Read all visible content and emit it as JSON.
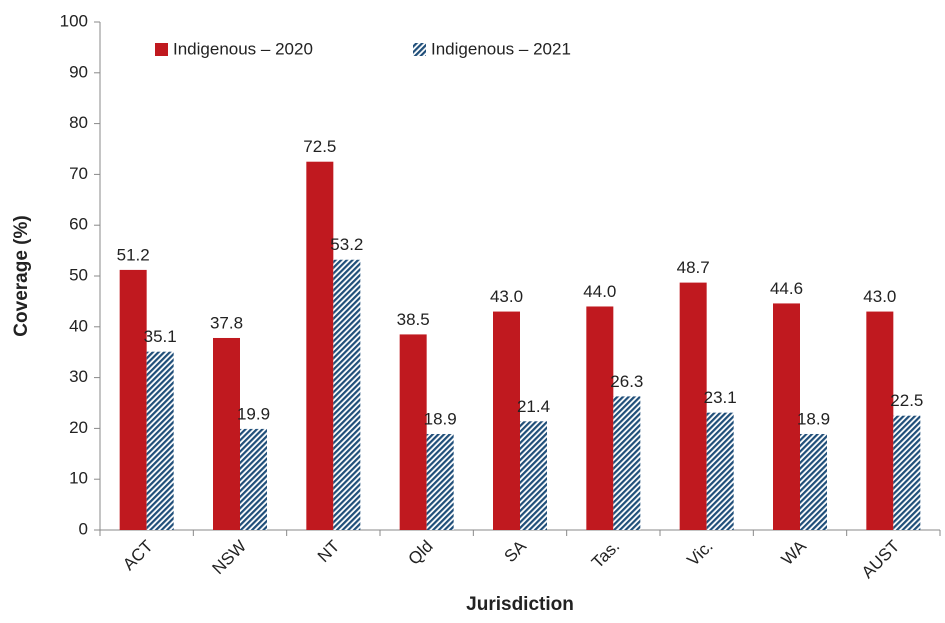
{
  "chart_data": {
    "type": "bar",
    "x_label": "Jurisdiction",
    "y_label": "Coverage (%)",
    "categories": [
      "ACT",
      "NSW",
      "NT",
      "Qld",
      "SA",
      "Tas.",
      "Vic.",
      "WA",
      "AUST"
    ],
    "series": [
      {
        "name": "Indigenous – 2020",
        "color": "#c0191f",
        "values": [
          51.2,
          37.8,
          72.5,
          38.5,
          43.0,
          44.0,
          48.7,
          44.6,
          43.0
        ],
        "value_labels": [
          "51.2",
          "37.8",
          "72.5",
          "38.5",
          "43.0",
          "44.0",
          "48.7",
          "44.6",
          "43.0"
        ]
      },
      {
        "name": "Indigenous – 2021",
        "color": "#1f4e79",
        "hatch": true,
        "values": [
          35.1,
          19.9,
          53.2,
          18.9,
          21.4,
          26.3,
          23.1,
          18.9,
          22.5
        ],
        "value_labels": [
          "35.1",
          "19.9",
          "53.2",
          "18.9",
          "21.4",
          "26.3",
          "23.1",
          "18.9",
          "22.5"
        ]
      }
    ],
    "ylim": [
      0,
      100
    ],
    "yticks": [
      0,
      10,
      20,
      30,
      40,
      50,
      60,
      70,
      80,
      90,
      100
    ],
    "legend": "top-left",
    "grid": false
  }
}
